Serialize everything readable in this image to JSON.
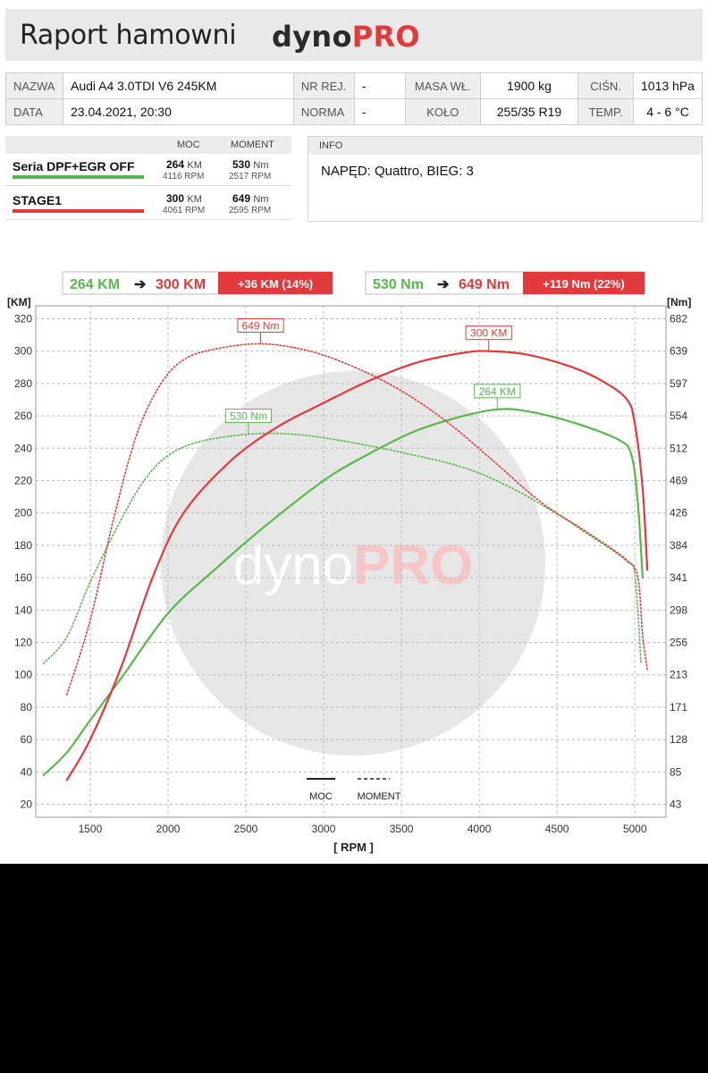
{
  "header": {
    "title": "Raport hamowni",
    "logo_part1": "dyno",
    "logo_part2": "PRO"
  },
  "info_table": {
    "rows": [
      [
        {
          "label": "NAZWA",
          "value": "Audi A4 3.0TDI V6 245KM"
        },
        {
          "label": "NR REJ.",
          "value": "-"
        },
        {
          "label": "MASA WŁ.",
          "value": "1900 kg"
        },
        {
          "label": "CIŚN.",
          "value": "1013 hPa"
        }
      ],
      [
        {
          "label": "DATA",
          "value": "23.04.2021, 20:30"
        },
        {
          "label": "NORMA",
          "value": "-"
        },
        {
          "label": "KOŁO",
          "value": "255/35 R19"
        },
        {
          "label": "TEMP.",
          "value": "4 - 6 °C"
        }
      ]
    ]
  },
  "runs_table": {
    "col_power": "MOC",
    "col_torque": "MOMENT",
    "runs": [
      {
        "name": "Seria DPF+EGR OFF",
        "color": "#57b84b",
        "power": "264",
        "power_unit": "KM",
        "power_rpm": "4116 RPM",
        "torque": "530",
        "torque_unit": "Nm",
        "torque_rpm": "2517 RPM"
      },
      {
        "name": "STAGE1",
        "color": "#e2393b",
        "power": "300",
        "power_unit": "KM",
        "power_rpm": "4061 RPM",
        "torque": "649",
        "torque_unit": "Nm",
        "torque_rpm": "2595 RPM"
      }
    ]
  },
  "info_box": {
    "header": "INFO",
    "text": "NAPĘD: Quattro,  BIEG: 3"
  },
  "summary": {
    "power_from": "264 KM",
    "power_to": "300 KM",
    "power_gain": "+36 KM  (14%)",
    "torque_from": "530 Nm",
    "torque_to": "649 Nm",
    "torque_gain": "+119 Nm  (22%)"
  },
  "colors": {
    "green": "#57b84b",
    "red": "#e2393b",
    "grid": "#b9b9b9"
  },
  "chart_data": {
    "type": "line",
    "xlabel": "[ RPM ]",
    "ylabel_left": "[KM]",
    "ylabel_right": "[Nm]",
    "xlim": [
      1150,
      5200
    ],
    "ylim_left": [
      12,
      328
    ],
    "x_ticks": [
      1500,
      2000,
      2500,
      3000,
      3500,
      4000,
      4500,
      5000
    ],
    "y_ticks_left": [
      20,
      40,
      60,
      80,
      100,
      120,
      140,
      160,
      180,
      200,
      220,
      240,
      260,
      280,
      300,
      320
    ],
    "y_ticks_right": [
      "43",
      "85",
      "128",
      "171",
      "213",
      "256",
      "298",
      "341",
      "384",
      "426",
      "469",
      "512",
      "554",
      "597",
      "639",
      "682"
    ],
    "grid": "dashed",
    "watermark": {
      "part1": "dyno",
      "part2": "PRO"
    },
    "legend": [
      {
        "label": "MOC",
        "style": "solid"
      },
      {
        "label": "MOMENT",
        "style": "dotted"
      }
    ],
    "series": [
      {
        "run": "Seria DPF+EGR OFF",
        "quantity": "MOC",
        "unit": "KM",
        "color": "#57b84b",
        "style": "solid",
        "peak": {
          "x": 4116,
          "y": 264,
          "label": "264 KM"
        },
        "points": [
          [
            1200,
            38
          ],
          [
            1350,
            52
          ],
          [
            1500,
            72
          ],
          [
            1700,
            98
          ],
          [
            2000,
            138
          ],
          [
            2300,
            165
          ],
          [
            2600,
            190
          ],
          [
            3000,
            220
          ],
          [
            3300,
            237
          ],
          [
            3600,
            251
          ],
          [
            3900,
            260
          ],
          [
            4116,
            264
          ],
          [
            4300,
            263
          ],
          [
            4600,
            256
          ],
          [
            4900,
            245
          ],
          [
            4980,
            235
          ],
          [
            5020,
            205
          ],
          [
            5050,
            160
          ]
        ]
      },
      {
        "run": "Seria DPF+EGR OFF",
        "quantity": "MOMENT",
        "unit": "Nm",
        "color": "#57b84b",
        "style": "dotted",
        "peak": {
          "x": 2517,
          "y": 530,
          "label": "530 Nm"
        },
        "points": [
          [
            1200,
            228
          ],
          [
            1350,
            263
          ],
          [
            1500,
            335
          ],
          [
            1700,
            418
          ],
          [
            1850,
            470
          ],
          [
            2000,
            502
          ],
          [
            2200,
            520
          ],
          [
            2517,
            530
          ],
          [
            2800,
            530
          ],
          [
            3100,
            522
          ],
          [
            3500,
            506
          ],
          [
            3900,
            486
          ],
          [
            4200,
            460
          ],
          [
            4500,
            425
          ],
          [
            4700,
            398
          ],
          [
            4850,
            378
          ],
          [
            4950,
            362
          ],
          [
            5000,
            345
          ],
          [
            5040,
            228
          ]
        ]
      },
      {
        "run": "STAGE1",
        "quantity": "MOC",
        "unit": "KM",
        "color": "#e2393b",
        "style": "solid",
        "peak": {
          "x": 4061,
          "y": 300,
          "label": "300 KM"
        },
        "points": [
          [
            1350,
            35
          ],
          [
            1500,
            60
          ],
          [
            1700,
            105
          ],
          [
            1900,
            160
          ],
          [
            2100,
            200
          ],
          [
            2400,
            232
          ],
          [
            2700,
            253
          ],
          [
            3000,
            268
          ],
          [
            3300,
            282
          ],
          [
            3600,
            293
          ],
          [
            3900,
            299
          ],
          [
            4061,
            300
          ],
          [
            4300,
            298
          ],
          [
            4600,
            290
          ],
          [
            4800,
            281
          ],
          [
            4950,
            270
          ],
          [
            5000,
            255
          ],
          [
            5050,
            215
          ],
          [
            5080,
            165
          ]
        ]
      },
      {
        "run": "STAGE1",
        "quantity": "MOMENT",
        "unit": "Nm",
        "color": "#e2393b",
        "style": "dotted",
        "peak": {
          "x": 2595,
          "y": 649,
          "label": "649 Nm"
        },
        "points": [
          [
            1350,
            187
          ],
          [
            1500,
            285
          ],
          [
            1650,
            418
          ],
          [
            1800,
            530
          ],
          [
            1950,
            595
          ],
          [
            2100,
            628
          ],
          [
            2300,
            642
          ],
          [
            2595,
            649
          ],
          [
            2900,
            640
          ],
          [
            3200,
            618
          ],
          [
            3500,
            587
          ],
          [
            3800,
            545
          ],
          [
            4100,
            493
          ],
          [
            4400,
            440
          ],
          [
            4700,
            400
          ],
          [
            4950,
            364
          ],
          [
            5020,
            340
          ],
          [
            5050,
            265
          ],
          [
            5080,
            220
          ]
        ]
      }
    ]
  }
}
